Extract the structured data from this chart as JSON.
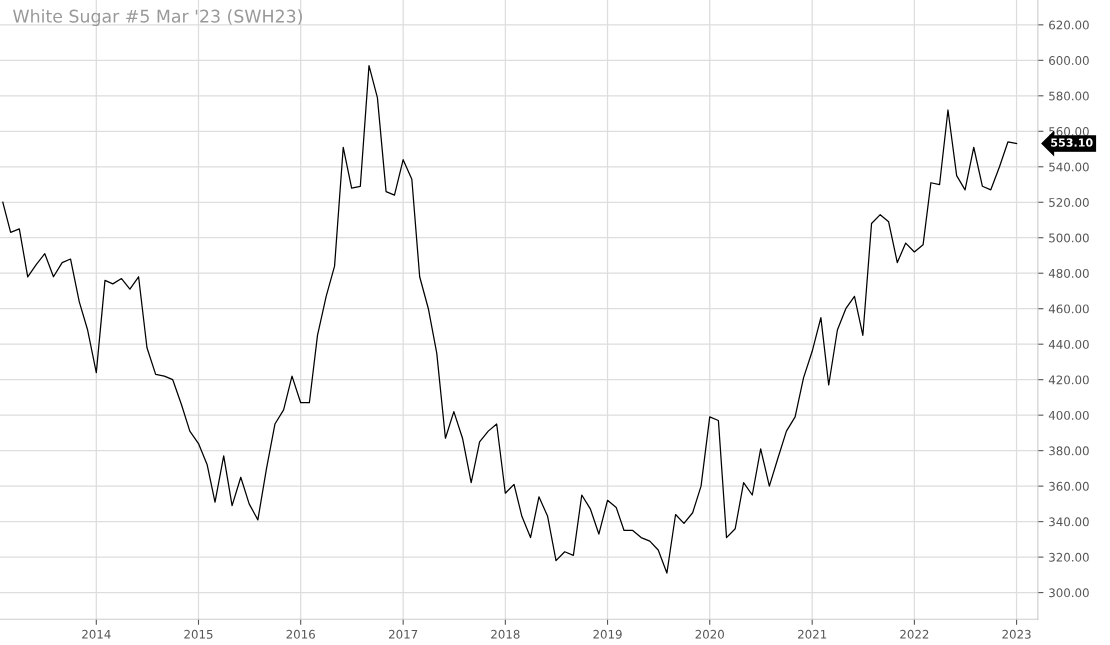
{
  "chart_data": {
    "type": "line",
    "title": "White Sugar #5 Mar '23 (SWH23)",
    "x": [
      "2013-02",
      "2013-03",
      "2013-04",
      "2013-05",
      "2013-06",
      "2013-07",
      "2013-08",
      "2013-09",
      "2013-10",
      "2013-11",
      "2013-12",
      "2014-01",
      "2014-02",
      "2014-03",
      "2014-04",
      "2014-05",
      "2014-06",
      "2014-07",
      "2014-08",
      "2014-09",
      "2014-10",
      "2014-11",
      "2014-12",
      "2015-01",
      "2015-02",
      "2015-03",
      "2015-04",
      "2015-05",
      "2015-06",
      "2015-07",
      "2015-08",
      "2015-09",
      "2015-10",
      "2015-11",
      "2015-12",
      "2016-01",
      "2016-02",
      "2016-03",
      "2016-04",
      "2016-05",
      "2016-06",
      "2016-07",
      "2016-08",
      "2016-09",
      "2016-10",
      "2016-11",
      "2016-12",
      "2017-01",
      "2017-02",
      "2017-03",
      "2017-04",
      "2017-05",
      "2017-06",
      "2017-07",
      "2017-08",
      "2017-09",
      "2017-10",
      "2017-11",
      "2017-12",
      "2018-01",
      "2018-02",
      "2018-03",
      "2018-04",
      "2018-05",
      "2018-06",
      "2018-07",
      "2018-08",
      "2018-09",
      "2018-10",
      "2018-11",
      "2018-12",
      "2019-01",
      "2019-02",
      "2019-03",
      "2019-04",
      "2019-05",
      "2019-06",
      "2019-07",
      "2019-08",
      "2019-09",
      "2019-10",
      "2019-11",
      "2019-12",
      "2020-01",
      "2020-02",
      "2020-03",
      "2020-04",
      "2020-05",
      "2020-06",
      "2020-07",
      "2020-08",
      "2020-09",
      "2020-10",
      "2020-11",
      "2020-12",
      "2021-01",
      "2021-02",
      "2021-03",
      "2021-04",
      "2021-05",
      "2021-06",
      "2021-07",
      "2021-08",
      "2021-09",
      "2021-10",
      "2021-11",
      "2021-12",
      "2022-01",
      "2022-02",
      "2022-03",
      "2022-04",
      "2022-05",
      "2022-06",
      "2022-07",
      "2022-08",
      "2022-09",
      "2022-10",
      "2022-11",
      "2022-12",
      "2023-01"
    ],
    "series": [
      {
        "color": "#000000",
        "values": [
          520,
          503,
          505,
          478,
          485,
          491,
          478,
          486,
          488,
          464,
          448,
          424,
          476,
          474,
          477,
          471,
          478,
          438,
          423,
          422,
          420,
          406,
          391,
          384,
          372,
          351,
          377,
          349,
          365,
          350,
          341,
          370,
          395,
          403,
          422,
          407,
          407,
          445,
          467,
          484,
          551,
          528,
          529,
          597,
          579,
          526,
          524,
          544,
          533,
          478,
          460,
          435,
          387,
          402,
          387,
          362,
          385,
          391,
          395,
          356,
          361,
          343,
          331,
          354,
          343,
          318,
          323,
          321,
          355,
          347,
          333,
          352,
          348,
          335,
          335,
          331,
          329,
          324,
          311,
          344,
          339,
          345,
          360,
          399,
          397,
          331,
          336,
          362,
          355,
          381,
          360,
          376,
          391,
          399,
          421,
          436,
          455,
          417,
          448,
          460,
          467,
          445,
          508,
          513,
          509,
          486,
          497,
          492,
          496,
          531,
          530,
          572,
          535,
          527,
          551,
          529,
          527,
          540,
          554,
          553.1
        ]
      }
    ],
    "xlim": [
      "2013-01-22",
      "2023-03-18"
    ],
    "xticks": [
      {
        "value": "2014-01-01",
        "label": "2014"
      },
      {
        "value": "2015-01-01",
        "label": "2015"
      },
      {
        "value": "2016-01-01",
        "label": "2016"
      },
      {
        "value": "2017-01-01",
        "label": "2017"
      },
      {
        "value": "2018-01-01",
        "label": "2018"
      },
      {
        "value": "2019-01-01",
        "label": "2019"
      },
      {
        "value": "2020-01-01",
        "label": "2020"
      },
      {
        "value": "2021-01-01",
        "label": "2021"
      },
      {
        "value": "2022-01-01",
        "label": "2022"
      },
      {
        "value": "2023-01-01",
        "label": "2023"
      }
    ],
    "ylim": [
      285,
      634
    ],
    "yticks": [
      {
        "value": 300,
        "label": "300.00"
      },
      {
        "value": 320,
        "label": "320.00"
      },
      {
        "value": 340,
        "label": "340.00"
      },
      {
        "value": 360,
        "label": "360.00"
      },
      {
        "value": 380,
        "label": "380.00"
      },
      {
        "value": 400,
        "label": "400.00"
      },
      {
        "value": 420,
        "label": "420.00"
      },
      {
        "value": 440,
        "label": "440.00"
      },
      {
        "value": 460,
        "label": "460.00"
      },
      {
        "value": 480,
        "label": "480.00"
      },
      {
        "value": 500,
        "label": "500.00"
      },
      {
        "value": 520,
        "label": "520.00"
      },
      {
        "value": 540,
        "label": "540.00"
      },
      {
        "value": 560,
        "label": "560.00"
      },
      {
        "value": 580,
        "label": "580.00"
      },
      {
        "value": 600,
        "label": "600.00"
      },
      {
        "value": 620,
        "label": "620.00"
      }
    ],
    "annotations": [
      "553.10"
    ],
    "grid": true,
    "marker": "none",
    "line_style": "solid"
  }
}
